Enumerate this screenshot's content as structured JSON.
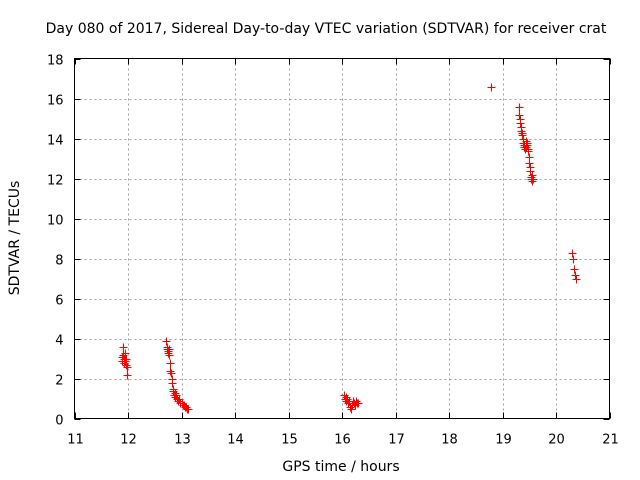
{
  "chart_data": {
    "type": "scatter",
    "title": "Day 080 of 2017, Sidereal Day-to-day VTEC variation (SDTVAR) for receiver crat",
    "xlabel": "GPS time / hours",
    "ylabel": "SDTVAR / TECUs",
    "xlim": [
      11,
      21
    ],
    "ylim": [
      0,
      18
    ],
    "xticks": [
      "11",
      "12",
      "13",
      "14",
      "15",
      "16",
      "17",
      "18",
      "19",
      "20",
      "21"
    ],
    "yticks": [
      "0",
      "2",
      "4",
      "6",
      "8",
      "10",
      "12",
      "14",
      "16",
      "18"
    ],
    "grid": true,
    "marker": "+",
    "series": [
      {
        "name": "SDTVAR",
        "color": "#ff0000",
        "x": [
          11.88,
          11.89,
          11.9,
          11.91,
          11.92,
          11.93,
          11.94,
          11.95,
          11.96,
          11.97,
          11.98,
          11.99,
          12.71,
          12.72,
          12.73,
          12.74,
          12.75,
          12.76,
          12.77,
          12.78,
          12.79,
          12.8,
          12.81,
          12.82,
          12.83,
          12.84,
          12.85,
          12.86,
          12.87,
          12.88,
          12.9,
          12.92,
          12.94,
          12.96,
          12.98,
          13.0,
          13.02,
          13.04,
          13.06,
          13.08,
          13.1,
          13.12,
          16.03,
          16.05,
          16.07,
          16.08,
          16.1,
          16.12,
          16.13,
          16.15,
          16.17,
          16.18,
          16.2,
          16.22,
          16.24,
          16.26,
          16.28,
          16.3,
          18.78,
          19.3,
          19.31,
          19.32,
          19.33,
          19.34,
          19.35,
          19.36,
          19.37,
          19.38,
          19.39,
          19.4,
          19.41,
          19.42,
          19.43,
          19.44,
          19.45,
          19.46,
          19.47,
          19.48,
          19.49,
          19.5,
          19.51,
          19.52,
          19.53,
          19.54,
          19.55,
          19.56,
          19.57,
          20.3,
          20.32,
          20.34,
          20.36,
          20.38
        ],
        "y": [
          3.1,
          2.9,
          3.2,
          3.6,
          3.0,
          2.8,
          3.3,
          2.9,
          2.7,
          3.0,
          2.6,
          2.2,
          3.9,
          3.5,
          3.6,
          3.4,
          3.3,
          3.5,
          3.2,
          2.8,
          2.4,
          2.3,
          2.3,
          2.0,
          1.8,
          1.5,
          1.4,
          1.2,
          1.3,
          1.1,
          1.2,
          1.0,
          0.9,
          1.0,
          0.8,
          0.8,
          0.7,
          0.7,
          0.6,
          0.6,
          0.5,
          0.5,
          1.2,
          1.0,
          1.1,
          0.9,
          1.0,
          0.8,
          0.9,
          0.6,
          0.5,
          0.7,
          0.9,
          0.8,
          0.7,
          0.9,
          0.8,
          0.8,
          16.6,
          15.6,
          15.2,
          15.0,
          14.8,
          14.6,
          14.4,
          14.3,
          14.2,
          14.0,
          13.8,
          13.6,
          13.7,
          13.5,
          13.9,
          13.6,
          13.8,
          13.7,
          13.4,
          13.5,
          13.1,
          12.8,
          12.6,
          12.4,
          12.1,
          12.0,
          11.9,
          12.2,
          12.0,
          8.3,
          8.0,
          7.5,
          7.2,
          7.0
        ]
      }
    ]
  }
}
